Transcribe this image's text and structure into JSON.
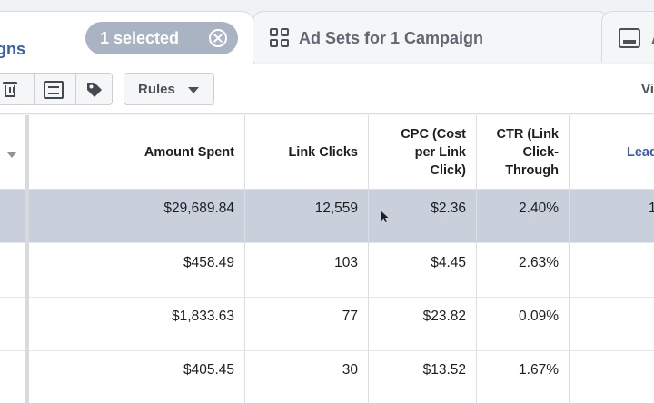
{
  "tabs": {
    "campaigns_partial_label": "aigns",
    "selected_chip": "1 selected",
    "ad_sets_label": "Ad Sets for 1 Campaign",
    "ads_partial_label": "A"
  },
  "toolbar": {
    "rules_label": "Rules",
    "view_partial_label": "Vi"
  },
  "table": {
    "headers": {
      "amount_spent": "Amount Spent",
      "link_clicks": "Link Clicks",
      "cpc": "CPC (Cost per Link Click)",
      "ctr": "CTR (Link Click-Through",
      "leads_partial": "Lead"
    },
    "rows": [
      {
        "amount_spent": "$29,689.84",
        "link_clicks": "12,559",
        "cpc": "$2.36",
        "ctr": "2.40%",
        "leads_partial": "1"
      },
      {
        "amount_spent": "$458.49",
        "link_clicks": "103",
        "cpc": "$4.45",
        "ctr": "2.63%",
        "leads_partial": ""
      },
      {
        "amount_spent": "$1,833.63",
        "link_clicks": "77",
        "cpc": "$23.82",
        "ctr": "0.09%",
        "leads_partial": ""
      },
      {
        "amount_spent": "$405.45",
        "link_clicks": "30",
        "cpc": "$13.52",
        "ctr": "1.67%",
        "leads_partial": ""
      }
    ]
  },
  "colors": {
    "accent": "#3a5ea8",
    "chip": "#aab3c2",
    "selected_row": "#c9d0db"
  }
}
